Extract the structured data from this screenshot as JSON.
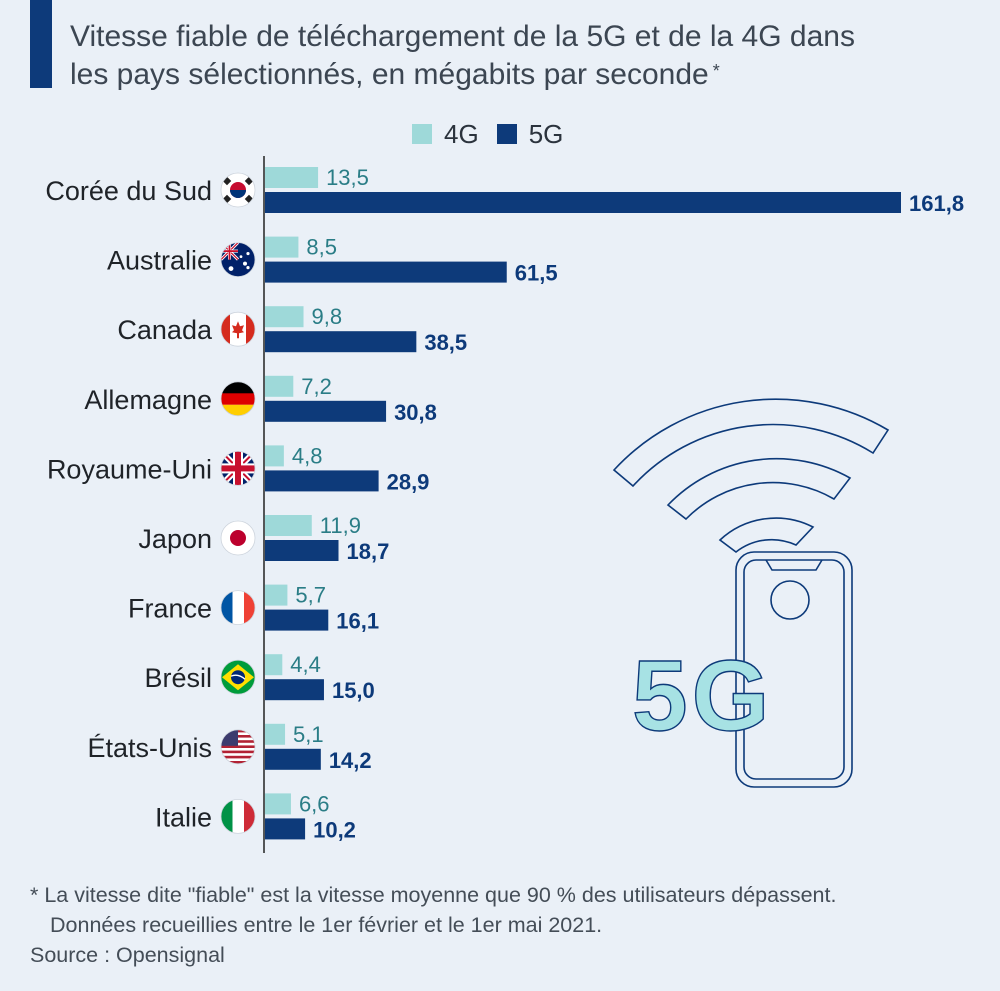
{
  "title": {
    "line1": "Vitesse fiable de téléchargement de la 5G et de la 4G dans",
    "line2": "les pays sélectionnés, en mégabits par seconde",
    "marker": "*"
  },
  "colors": {
    "c4g": "#9ed9d9",
    "c5g": "#0d3a7a",
    "label4g": "#2a7d86",
    "label5g": "#0d3a7a",
    "accent": "#0d3a7a"
  },
  "chart_data": {
    "type": "bar",
    "orientation": "horizontal",
    "categories": [
      "Corée du Sud",
      "Australie",
      "Canada",
      "Allemagne",
      "Royaume-Uni",
      "Japon",
      "France",
      "Brésil",
      "États-Unis",
      "Italie"
    ],
    "flags": [
      "kr",
      "au",
      "ca",
      "de",
      "gb",
      "jp",
      "fr",
      "br",
      "us",
      "it"
    ],
    "series": [
      {
        "name": "4G",
        "values": [
          13.5,
          8.5,
          9.8,
          7.2,
          4.8,
          11.9,
          5.7,
          4.4,
          5.1,
          6.6
        ],
        "labels": [
          "13,5",
          "8,5",
          "9,8",
          "7,2",
          "4,8",
          "11,9",
          "5,7",
          "4,4",
          "5,1",
          "6,6"
        ]
      },
      {
        "name": "5G",
        "values": [
          161.8,
          61.5,
          38.5,
          30.8,
          28.9,
          18.7,
          16.1,
          15.0,
          14.2,
          10.2
        ],
        "labels": [
          "161,8",
          "61,5",
          "38,5",
          "30,8",
          "28,9",
          "18,7",
          "16,1",
          "15,0",
          "14,2",
          "10,2"
        ]
      }
    ],
    "xlim": [
      0,
      161.8
    ],
    "grid": false,
    "legend": "top-center"
  },
  "illustration": {
    "text": "5G"
  },
  "footnote": {
    "line1": "* La vitesse dite \"fiable\" est la vitesse moyenne que 90 % des utilisateurs dépassent.",
    "line2": "Données recueillies entre le 1er février et le 1er mai 2021."
  },
  "source": "Source : Opensignal"
}
